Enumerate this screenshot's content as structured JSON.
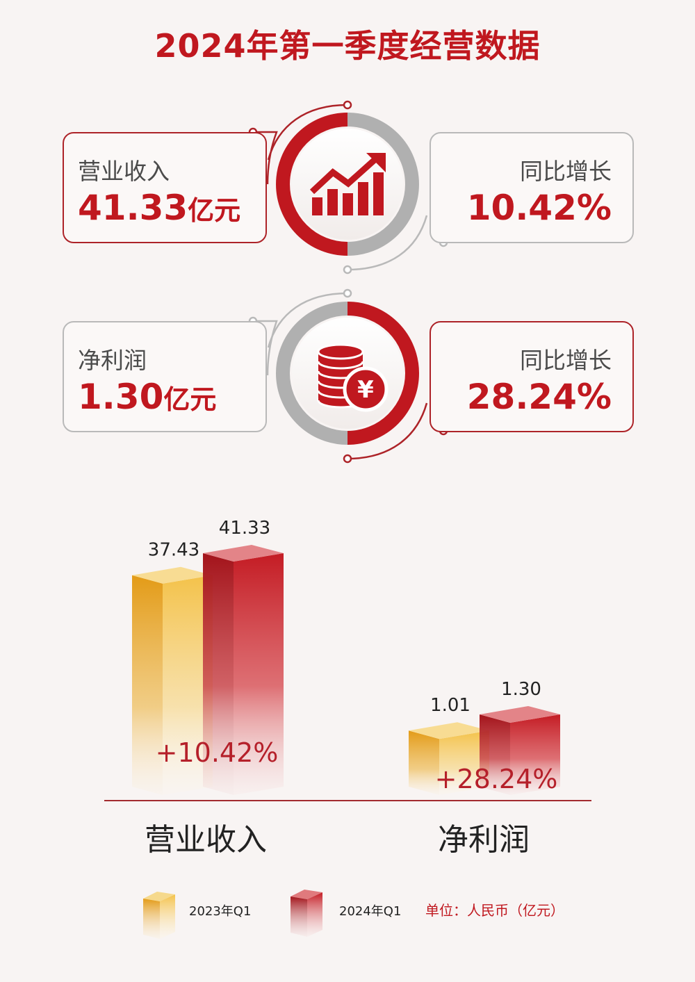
{
  "title": "2024年第一季度经营数据",
  "cards": {
    "revenue": {
      "label": "营业收入",
      "value": "41.33",
      "unit": "亿元"
    },
    "revenue_growth": {
      "label": "同比增长",
      "value": "10.42%"
    },
    "profit": {
      "label": "净利润",
      "value": "1.30",
      "unit": "亿元"
    },
    "profit_growth": {
      "label": "同比增长",
      "value": "28.24%"
    }
  },
  "icons": {
    "top": "growth-chart-icon",
    "bottom": "coins-yen-icon"
  },
  "colors": {
    "brand_red": "#c0181f",
    "dark_red": "#ad2328",
    "gold": "#e8a41e",
    "grey": "#b9b9b9"
  },
  "chart_data": {
    "type": "bar",
    "categories": [
      "营业收入",
      "净利润"
    ],
    "series": [
      {
        "name": "2023年Q1",
        "values": [
          37.43,
          1.01
        ],
        "color": "#e8a41e"
      },
      {
        "name": "2024年Q1",
        "values": [
          41.33,
          1.3
        ],
        "color": "#c0181f"
      }
    ],
    "value_labels": [
      [
        "37.43",
        "41.33"
      ],
      [
        "1.01",
        "1.30"
      ]
    ],
    "growth_labels": [
      "+10.42%",
      "+28.24%"
    ],
    "unit": "单位：人民币（亿元）",
    "legend_position": "bottom"
  }
}
